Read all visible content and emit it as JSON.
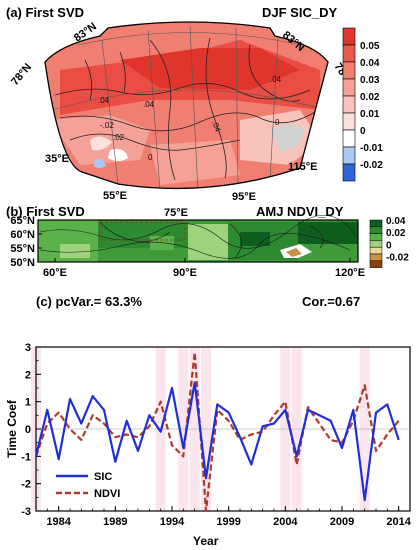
{
  "panel_a": {
    "title": "(a) First SVD",
    "label": "DJF SIC_DY",
    "lat_labels": [
      "83°N",
      "83°N",
      "78°N",
      "78°N"
    ],
    "lon_labels": [
      "35°E",
      "55°E",
      "75°E",
      "95°E",
      "115°E"
    ],
    "contour_labels": [
      "-.02",
      ".04",
      ".04",
      ".04",
      ".02",
      "0",
      ".04",
      "0"
    ],
    "colorbar": {
      "ticks": [
        "0.05",
        "0.04",
        "0.03",
        "0.02",
        "0.01",
        "0",
        "-0.01",
        "-0.02"
      ],
      "colors": [
        "#e0352d",
        "#ea5a4f",
        "#f07f72",
        "#f5a197",
        "#f9c3bb",
        "#fbe0dc",
        "#ffffff",
        "#a9c8f3",
        "#2f65d6"
      ]
    }
  },
  "panel_b": {
    "title": "(b) First SVD",
    "label": "AMJ NDVI_DY",
    "lat_labels": [
      "65°N",
      "60°N",
      "55°N",
      "50°N"
    ],
    "lon_labels": [
      "60°E",
      "90°E",
      "120°E"
    ],
    "colorbar": {
      "ticks": [
        "0.04",
        "0.02",
        "0",
        "-0.02"
      ],
      "colors": [
        "#0f5e1f",
        "#2c8a30",
        "#5cb24a",
        "#9fd27c",
        "#e7d79b",
        "#c98f45",
        "#8a3f12"
      ]
    }
  },
  "chart_data": {
    "type": "line",
    "title": "(c) pcVar.= 63.3%",
    "annotation": "Cor.=0.67",
    "xlabel": "Year",
    "ylabel": "Time Coef",
    "xlim": [
      1982,
      2015
    ],
    "ylim": [
      -3,
      3
    ],
    "x_ticks": [
      "1984",
      "1989",
      "1994",
      "1999",
      "2004",
      "2009",
      "2014"
    ],
    "y_ticks": [
      "3",
      "2",
      "1",
      "0",
      "-1",
      "-2",
      "-3"
    ],
    "legend": "bottom-left",
    "x": [
      1982,
      1983,
      1984,
      1985,
      1986,
      1987,
      1988,
      1989,
      1990,
      1991,
      1992,
      1993,
      1994,
      1995,
      1996,
      1997,
      1998,
      1999,
      2000,
      2001,
      2002,
      2003,
      2004,
      2005,
      2006,
      2007,
      2008,
      2009,
      2010,
      2011,
      2012,
      2013,
      2014,
      2015
    ],
    "series": [
      {
        "name": "SIC",
        "color": "#1f2fd6",
        "dash": "solid",
        "values": [
          -1.0,
          0.7,
          -1.1,
          1.1,
          0.2,
          1.2,
          0.7,
          -1.2,
          0.3,
          -0.8,
          0.5,
          -0.1,
          1.5,
          -0.7,
          1.7,
          -1.8,
          0.9,
          0.6,
          -0.3,
          -1.3,
          0.1,
          0.2,
          0.7,
          -1.0,
          0.7,
          0.5,
          0.3,
          -0.7,
          0.7,
          -2.6,
          0.6,
          0.9,
          -0.4,
          null
        ]
      },
      {
        "name": "NDVI",
        "color": "#b03a2a",
        "dash": "dashed",
        "values": [
          -1.0,
          0.2,
          0.6,
          0.0,
          -0.4,
          0.5,
          0.2,
          -0.3,
          -0.2,
          -0.3,
          0.1,
          1.0,
          -0.6,
          -1.0,
          2.8,
          -3.0,
          0.7,
          0.3,
          -0.4,
          -0.2,
          -0.1,
          0.5,
          1.0,
          -1.3,
          0.8,
          0.2,
          -0.4,
          -0.5,
          0.3,
          1.6,
          -0.8,
          -0.2,
          0.3,
          null
        ]
      }
    ],
    "highlight_color": "#f5c6d4"
  }
}
